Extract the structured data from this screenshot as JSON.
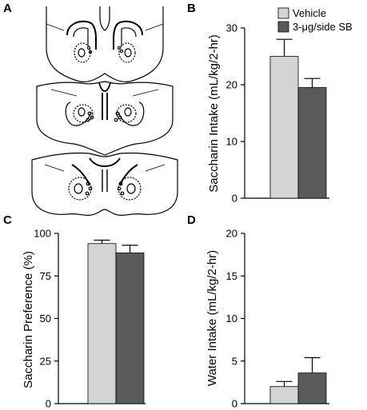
{
  "figure": {
    "panel_a": {
      "letter": "A"
    },
    "legend": {
      "vehicle": "Vehicle",
      "sb": "3-μg/side SB"
    },
    "colors": {
      "vehicle": "#d4d4d4",
      "sb": "#5a5a5a",
      "axis": "#000000"
    }
  },
  "chart_data": [
    {
      "letter": "B",
      "type": "bar",
      "ylabel": "Saccharin Intake (mL/kg/2-hr)",
      "ylim": [
        0,
        30
      ],
      "yticks": [
        "0",
        "10",
        "20",
        "30"
      ],
      "series": [
        {
          "name": "Vehicle",
          "values": [
            25.0
          ],
          "error": [
            3.0
          ]
        },
        {
          "name": "3-μg/side SB",
          "values": [
            19.5
          ],
          "error": [
            1.6
          ]
        }
      ]
    },
    {
      "letter": "C",
      "type": "bar",
      "ylabel": "Saccharin Preference (%)",
      "ylim": [
        0,
        100
      ],
      "yticks": [
        "0",
        "25",
        "50",
        "75",
        "100"
      ],
      "series": [
        {
          "name": "Vehicle",
          "values": [
            94.0
          ],
          "error": [
            2.0
          ]
        },
        {
          "name": "3-μg/side SB",
          "values": [
            88.5
          ],
          "error": [
            4.5
          ]
        }
      ]
    },
    {
      "letter": "D",
      "type": "bar",
      "ylabel": "Water Intake (mL/kg/2-hr)",
      "ylim": [
        0,
        20
      ],
      "yticks": [
        "0",
        "5",
        "10",
        "15",
        "20"
      ],
      "series": [
        {
          "name": "Vehicle",
          "values": [
            2.0
          ],
          "error": [
            0.6
          ]
        },
        {
          "name": "3-μg/side SB",
          "values": [
            3.6
          ],
          "error": [
            1.8
          ]
        }
      ]
    }
  ]
}
